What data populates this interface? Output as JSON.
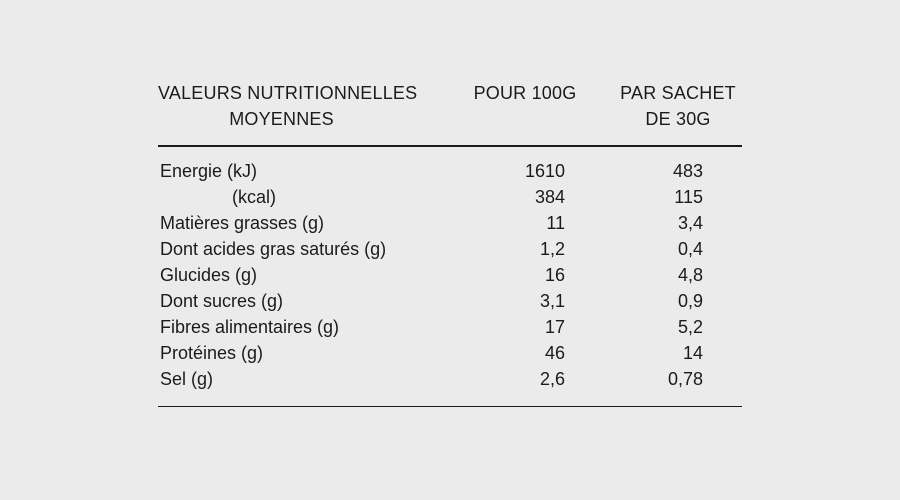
{
  "colors": {
    "background": "#ebebeb",
    "text": "#1b1b1b",
    "rule": "#1b1b1b"
  },
  "table": {
    "header": {
      "col1_line1": "VALEURS NUTRITIONNELLES",
      "col1_line2": "MOYENNES",
      "col2": "POUR 100G",
      "col3_line1": "PAR SACHET",
      "col3_line2": "DE 30G"
    },
    "rows": [
      {
        "label": "Energie (kJ)",
        "per_100g": "1610",
        "par_sachet": "483",
        "indent": false
      },
      {
        "label": "(kcal)",
        "per_100g": "384",
        "par_sachet": "115",
        "indent": true
      },
      {
        "label": "Matières grasses (g)",
        "per_100g": "11",
        "par_sachet": "3,4",
        "indent": false
      },
      {
        "label": "Dont acides gras saturés (g)",
        "per_100g": "1,2",
        "par_sachet": "0,4",
        "indent": false
      },
      {
        "label": "Glucides (g)",
        "per_100g": "16",
        "par_sachet": "4,8",
        "indent": false
      },
      {
        "label": "Dont sucres (g)",
        "per_100g": "3,1",
        "par_sachet": "0,9",
        "indent": false
      },
      {
        "label": "Fibres alimentaires (g)",
        "per_100g": "17",
        "par_sachet": "5,2",
        "indent": false
      },
      {
        "label": "Protéines (g)",
        "per_100g": "46",
        "par_sachet": "14",
        "indent": false
      },
      {
        "label": "Sel (g)",
        "per_100g": "2,6",
        "par_sachet": "0,78",
        "indent": false
      }
    ]
  }
}
